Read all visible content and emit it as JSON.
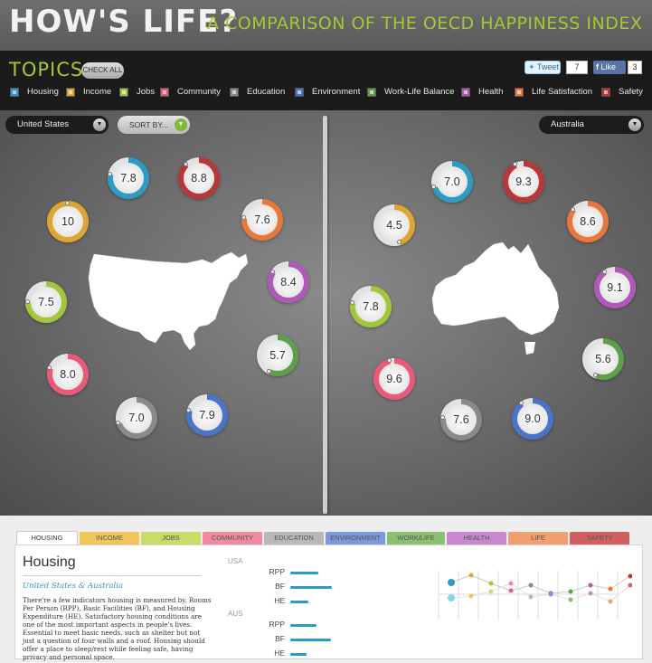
{
  "header": {
    "title": "HOW'S LIFE?",
    "subtitle": "A COMPARISON OF THE OECD HAPPINESS INDEX"
  },
  "topics": {
    "title": "TOPICS",
    "check_all": "CHECK ALL",
    "tweet_label": "Tweet",
    "tweet_count": "7",
    "like_label": "Like",
    "like_count": "3",
    "items": [
      {
        "label": "Housing",
        "color": "#2e9bc4"
      },
      {
        "label": "Income",
        "color": "#e0a430"
      },
      {
        "label": "Jobs",
        "color": "#a4c63a"
      },
      {
        "label": "Community",
        "color": "#e85a78"
      },
      {
        "label": "Education",
        "color": "#8a8a8a"
      },
      {
        "label": "Environment",
        "color": "#4a74c8"
      },
      {
        "label": "Work-Life Balance",
        "color": "#5ca04a"
      },
      {
        "label": "Health",
        "color": "#b05ab8"
      },
      {
        "label": "Life Satisfaction",
        "color": "#e8783a"
      },
      {
        "label": "Safety",
        "color": "#b83838"
      }
    ]
  },
  "left": {
    "country": "United States",
    "sort_label": "SORT BY...",
    "scores": [
      {
        "value": "7.8",
        "color": "#2e9bc4"
      },
      {
        "value": "8.8",
        "color": "#b83838"
      },
      {
        "value": "7.6",
        "color": "#e8783a"
      },
      {
        "value": "8.4",
        "color": "#b05ab8"
      },
      {
        "value": "5.7",
        "color": "#5ca04a"
      },
      {
        "value": "7.9",
        "color": "#4a74c8"
      },
      {
        "value": "7.0",
        "color": "#8a8a8a"
      },
      {
        "value": "8.0",
        "color": "#e85a78"
      },
      {
        "value": "7.5",
        "color": "#a4c63a"
      },
      {
        "value": "10",
        "color": "#e0a430"
      }
    ]
  },
  "right": {
    "country": "Australia",
    "scores": [
      {
        "value": "7.0",
        "color": "#2e9bc4"
      },
      {
        "value": "9.3",
        "color": "#b83838"
      },
      {
        "value": "8.6",
        "color": "#e8783a"
      },
      {
        "value": "9.1",
        "color": "#b05ab8"
      },
      {
        "value": "5.6",
        "color": "#5ca04a"
      },
      {
        "value": "9.0",
        "color": "#4a74c8"
      },
      {
        "value": "7.6",
        "color": "#8a8a8a"
      },
      {
        "value": "9.6",
        "color": "#e85a78"
      },
      {
        "value": "7.8",
        "color": "#a4c63a"
      },
      {
        "value": "4.5",
        "color": "#e0a430"
      }
    ]
  },
  "detail": {
    "tabs": [
      {
        "label": "HOUSING",
        "color": "#ffffff"
      },
      {
        "label": "INCOME",
        "color": "#f2c65a"
      },
      {
        "label": "JOBS",
        "color": "#c8dc6a"
      },
      {
        "label": "COMMUNITY",
        "color": "#f08aa0"
      },
      {
        "label": "EDUCATION",
        "color": "#b8b8b8"
      },
      {
        "label": "ENVIRONMENT",
        "color": "#7a9ada"
      },
      {
        "label": "WORK/LIFE BALANCE",
        "color": "#8ac070"
      },
      {
        "label": "HEALTH",
        "color": "#c888d0"
      },
      {
        "label": "LIFE SATISFACTION",
        "color": "#f0a070"
      },
      {
        "label": "SAFETY",
        "color": "#d06060"
      }
    ],
    "title": "Housing",
    "subtitle": "United States & Australia",
    "body": "There're a few indicators housing is measured by. Rooms Per Person (RPP), Basic Facilities (BF), and Housing Expenditure (HE). Satisfactory housing conditions are one of the most important aspects in people's lives. Essential to meet basic needs, such as shelter but not just a question of four walls and a roof. Housing should offer a place to sleep/rest while feeling safe, having privacy and personal space.",
    "usa_label": "USA",
    "aus_label": "AUS",
    "usa_indicators": [
      {
        "label": "RPP",
        "value": 0.62
      },
      {
        "label": "BF",
        "value": 0.92
      },
      {
        "label": "HE",
        "value": 0.4
      }
    ],
    "aus_indicators": [
      {
        "label": "RPP",
        "value": 0.58
      },
      {
        "label": "BF",
        "value": 0.9
      },
      {
        "label": "HE",
        "value": 0.36
      }
    ]
  }
}
